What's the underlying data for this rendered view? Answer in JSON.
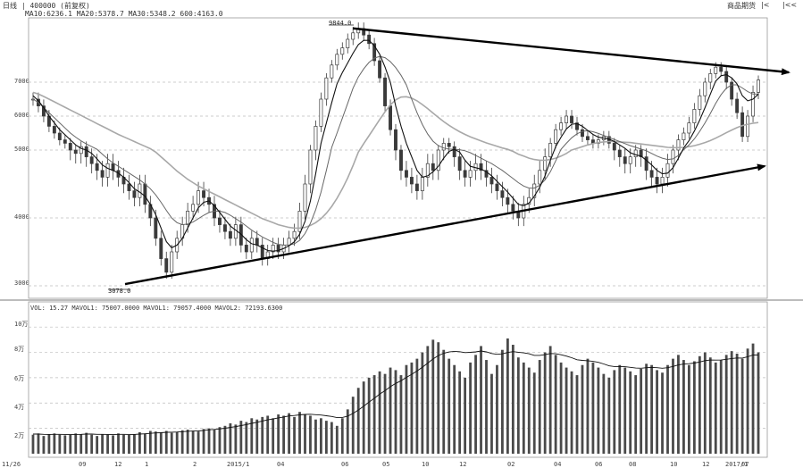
{
  "header": {
    "title": "日线 | 400000 (前复权)",
    "ma_line": "MA10:6236.1  MA20:5378.7  MA30:5348.2  600:4163.0",
    "toolbar": [
      "商品期货",
      "|<",
      "|<<"
    ]
  },
  "volume_header": "VOL: 15.27  MAVOL1: 75007.0000  MAVOL1: 79057.4000  MAVOL2: 72193.6300",
  "price_axis": [
    "7000",
    "6000",
    "5000",
    "4000",
    "3000"
  ],
  "volume_axis": [
    "10万",
    "8万",
    "6万",
    "4万",
    "2万"
  ],
  "x_axis": [
    "11/26",
    "09",
    "12",
    "1",
    "2",
    "2015/1",
    "04",
    "06",
    "05",
    "10",
    "12",
    "02",
    "04",
    "06",
    "08",
    "10",
    "12",
    "2017/1",
    "07"
  ],
  "annotations": {
    "high": "9844.0",
    "low": "3078.0"
  },
  "colors": {
    "candle": "#3a3a3a",
    "ma_dark": "#111111",
    "ma_mid": "#666666",
    "ma_light": "#a8a8a8",
    "trendline": "#000000",
    "grid": "#bdbdbd"
  },
  "chart_data": [
    {
      "type": "candlestick",
      "title": "",
      "ylim": [
        3000,
        10000
      ],
      "high": 9844.0,
      "low": 3078.0,
      "close": [
        6500,
        6300,
        6000,
        5700,
        5500,
        5300,
        5200,
        5000,
        4950,
        5100,
        4900,
        4800,
        4700,
        4600,
        4800,
        4700,
        4600,
        4500,
        4400,
        4300,
        4500,
        4200,
        4000,
        3700,
        3400,
        3200,
        3500,
        3700,
        3900,
        4100,
        4200,
        4400,
        4300,
        4200,
        4000,
        3900,
        3800,
        3700,
        3900,
        3600,
        3500,
        3700,
        3600,
        3400,
        3500,
        3600,
        3500,
        3600,
        3700,
        3800,
        4100,
        4500,
        5000,
        5700,
        6500,
        7200,
        7800,
        8300,
        8600,
        9000,
        9300,
        9500,
        9200,
        8800,
        8000,
        7200,
        6300,
        5600,
        5000,
        4700,
        4600,
        4500,
        4400,
        4600,
        4800,
        4700,
        5000,
        5200,
        5100,
        4900,
        4700,
        4600,
        4700,
        4800,
        4700,
        4600,
        4500,
        4400,
        4300,
        4200,
        4100,
        4000,
        4200,
        4300,
        4500,
        4700,
        4900,
        5200,
        5600,
        5800,
        6000,
        5800,
        5600,
        5400,
        5300,
        5200,
        5300,
        5400,
        5200,
        5000,
        4900,
        4800,
        4900,
        5000,
        4900,
        4700,
        4600,
        4500,
        4600,
        4800,
        5000,
        5300,
        5500,
        5800,
        6200,
        6600,
        7000,
        7400,
        7700,
        7500,
        7000,
        6500,
        6100,
        5400,
        6000,
        6700,
        7100
      ],
      "ma_short": [
        6600,
        6450,
        6250,
        6000,
        5800,
        5600,
        5450,
        5300,
        5150,
        5050,
        5000,
        4950,
        4870,
        4780,
        4730,
        4700,
        4660,
        4600,
        4520,
        4430,
        4380,
        4320,
        4200,
        4050,
        3850,
        3650,
        3560,
        3600,
        3700,
        3850,
        4000,
        4150,
        4230,
        4250,
        4180,
        4080,
        3980,
        3880,
        3820,
        3760,
        3680,
        3620,
        3600,
        3560,
        3520,
        3510,
        3520,
        3550,
        3590,
        3650,
        3760,
        3950,
        4250,
        4650,
        5200,
        5800,
        6400,
        6950,
        7450,
        7900,
        8350,
        8750,
        8950,
        8950,
        8700,
        8300,
        7700,
        7000,
        6300,
        5700,
        5200,
        4900,
        4700,
        4600,
        4620,
        4680,
        4760,
        4880,
        4980,
        5020,
        4970,
        4850,
        4760,
        4740,
        4720,
        4680,
        4620,
        4540,
        4460,
        4380,
        4290,
        4200,
        4180,
        4220,
        4320,
        4450,
        4620,
        4850,
        5100,
        5380,
        5620,
        5760,
        5780,
        5700,
        5580,
        5460,
        5380,
        5350,
        5320,
        5250,
        5150,
        5050,
        4960,
        4930,
        4910,
        4850,
        4780,
        4700,
        4650,
        4660,
        4740,
        4880,
        5060,
        5280,
        5560,
        5880,
        6250,
        6650,
        7050,
        7300,
        7350,
        7200,
        6950,
        6600,
        6450,
        6500,
        6650
      ],
      "ma_mid": [
        6500,
        6400,
        6250,
        6100,
        5950,
        5800,
        5650,
        5500,
        5380,
        5270,
        5180,
        5100,
        5020,
        4940,
        4870,
        4810,
        4760,
        4710,
        4660,
        4610,
        4560,
        4500,
        4430,
        4340,
        4230,
        4110,
        4000,
        3930,
        3900,
        3910,
        3940,
        3990,
        4040,
        4080,
        4100,
        4100,
        4080,
        4040,
        3990,
        3940,
        3880,
        3820,
        3770,
        3720,
        3680,
        3640,
        3610,
        3600,
        3600,
        3620,
        3670,
        3770,
        3920,
        4120,
        4380,
        4700,
        5080,
        5500,
        5940,
        6380,
        6820,
        7240,
        7620,
        7920,
        8120,
        8200,
        8140,
        7960,
        7680,
        7320,
        6920,
        6500,
        6100,
        5750,
        5470,
        5260,
        5130,
        5060,
        5030,
        5020,
        5010,
        4990,
        4960,
        4920,
        4880,
        4840,
        4800,
        4750,
        4700,
        4640,
        4580,
        4520,
        4470,
        4440,
        4440,
        4480,
        4560,
        4680,
        4840,
        5020,
        5200,
        5360,
        5480,
        5550,
        5570,
        5540,
        5490,
        5430,
        5370,
        5310,
        5250,
        5190,
        5130,
        5080,
        5030,
        4990,
        4950,
        4910,
        4880,
        4860,
        4870,
        4920,
        5010,
        5150,
        5330,
        5550,
        5800,
        6080,
        6370,
        6630,
        6820,
        6920,
        6920,
        6830,
        6720,
        6650,
        6650
      ],
      "ma_long": [
        6700,
        6650,
        6580,
        6500,
        6420,
        6340,
        6260,
        6180,
        6100,
        6020,
        5940,
        5860,
        5780,
        5700,
        5620,
        5540,
        5460,
        5390,
        5320,
        5250,
        5180,
        5110,
        5040,
        4970,
        4900,
        4830,
        4760,
        4690,
        4630,
        4570,
        4520,
        4470,
        4430,
        4390,
        4350,
        4310,
        4270,
        4230,
        4190,
        4150,
        4110,
        4070,
        4030,
        3990,
        3960,
        3930,
        3900,
        3880,
        3860,
        3850,
        3850,
        3860,
        3890,
        3930,
        3990,
        4070,
        4170,
        4290,
        4430,
        4590,
        4770,
        4970,
        5190,
        5420,
        5660,
        5900,
        6130,
        6330,
        6480,
        6560,
        6570,
        6530,
        6450,
        6340,
        6220,
        6090,
        5960,
        5840,
        5730,
        5630,
        5540,
        5460,
        5390,
        5330,
        5270,
        5210,
        5160,
        5110,
        5060,
        5020,
        4980,
        4940,
        4910,
        4880,
        4860,
        4850,
        4850,
        4860,
        4880,
        4910,
        4950,
        5000,
        5050,
        5100,
        5150,
        5190,
        5220,
        5240,
        5250,
        5250,
        5240,
        5230,
        5220,
        5200,
        5180,
        5160,
        5140,
        5120,
        5100,
        5080,
        5070,
        5070,
        5080,
        5100,
        5130,
        5170,
        5220,
        5280,
        5350,
        5430,
        5510,
        5590,
        5660,
        5720,
        5760,
        5790,
        5810
      ]
    },
    {
      "type": "bar",
      "title": "",
      "ylim": [
        0,
        110000
      ],
      "values": [
        15000,
        16000,
        14000,
        15500,
        16000,
        15000,
        14500,
        15000,
        16000,
        15500,
        16500,
        15000,
        14000,
        15500,
        15000,
        14500,
        16000,
        15000,
        14800,
        15200,
        17000,
        16000,
        18000,
        17500,
        17000,
        18000,
        16500,
        17000,
        18500,
        19000,
        18000,
        17500,
        19500,
        20000,
        19000,
        21000,
        22000,
        24000,
        23000,
        26000,
        25000,
        28000,
        27000,
        29000,
        30000,
        28000,
        31000,
        30000,
        32000,
        29000,
        33000,
        31000,
        30000,
        27000,
        28000,
        26000,
        25000,
        22000,
        28000,
        35000,
        45000,
        52000,
        57000,
        60000,
        62000,
        65000,
        63000,
        68000,
        66000,
        62000,
        70000,
        72000,
        75000,
        80000,
        85000,
        90000,
        88000,
        82000,
        75000,
        70000,
        65000,
        60000,
        72000,
        78000,
        85000,
        74000,
        63000,
        70000,
        82000,
        91000,
        86000,
        76000,
        72000,
        68000,
        64000,
        74000,
        80000,
        85000,
        78000,
        72000,
        68000,
        65000,
        62000,
        70000,
        75000,
        72000,
        68000,
        63000,
        60000,
        66000,
        70000,
        68000,
        65000,
        62000,
        67000,
        71000,
        70000,
        66000,
        64000,
        70000,
        75000,
        78000,
        74000,
        70000,
        73000,
        77000,
        80000,
        76000,
        72000,
        74000,
        78000,
        81000,
        79000,
        75000,
        83000,
        87000,
        80000
      ],
      "mavol": [
        15500,
        15500,
        15300,
        15200,
        15300,
        15300,
        15200,
        15100,
        15200,
        15300,
        15500,
        15500,
        15300,
        15300,
        15200,
        15100,
        15300,
        15300,
        15200,
        15200,
        15500,
        15700,
        16100,
        16400,
        16600,
        16900,
        17000,
        17100,
        17400,
        17700,
        17900,
        18000,
        18400,
        18900,
        19200,
        19600,
        20100,
        20800,
        21400,
        22200,
        23000,
        24000,
        24800,
        25800,
        26700,
        27400,
        28300,
        29000,
        29800,
        30200,
        30700,
        31000,
        31200,
        30800,
        30500,
        30000,
        29400,
        28500,
        28600,
        29700,
        31800,
        34500,
        37600,
        40700,
        43800,
        47000,
        49800,
        52900,
        55500,
        57600,
        60200,
        62700,
        65300,
        68300,
        71500,
        74800,
        77500,
        79300,
        80300,
        80800,
        80500,
        79800,
        80000,
        80400,
        81100,
        80400,
        79100,
        78500,
        78800,
        79900,
        80600,
        80100,
        79600,
        78900,
        77600,
        77600,
        78200,
        79100,
        78900,
        78100,
        77100,
        75800,
        74200,
        73700,
        73400,
        72900,
        72100,
        70900,
        69400,
        68800,
        68900,
        68700,
        68200,
        67600,
        67500,
        67900,
        68100,
        67900,
        67500,
        67900,
        68900,
        70100,
        70800,
        71100,
        71600,
        72400,
        73500,
        74000,
        73900,
        74000,
        74500,
        75200,
        75600,
        75500,
        76500,
        77900,
        78000
      ]
    }
  ]
}
